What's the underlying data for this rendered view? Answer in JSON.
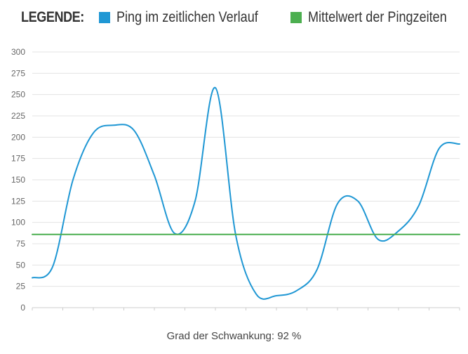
{
  "legend": {
    "title": "LEGENDE:",
    "items": [
      {
        "label": "Ping im zeitlichen Verlauf",
        "color": "#1f97d4"
      },
      {
        "label": "Mittelwert der Pingzeiten",
        "color": "#4caf50"
      }
    ]
  },
  "chart_data": {
    "type": "line",
    "title": "",
    "xlabel": "",
    "ylabel": "",
    "ylim": [
      0,
      300
    ],
    "yticks": [
      0,
      25,
      50,
      75,
      100,
      125,
      150,
      175,
      200,
      225,
      250,
      275,
      300
    ],
    "grid": true,
    "legend_position": "top",
    "series": [
      {
        "name": "Ping im zeitlichen Verlauf",
        "color": "#1f97d4",
        "values": [
          35,
          48,
          150,
          205,
          214,
          208,
          155,
          87,
          125,
          258,
          85,
          16,
          14,
          20,
          45,
          122,
          125,
          80,
          90,
          120,
          187,
          192
        ]
      },
      {
        "name": "Mittelwert der Pingzeiten",
        "color": "#4caf50",
        "values": [
          86,
          86
        ]
      }
    ]
  },
  "footer": {
    "text": "Grad der Schwankung: 92 %"
  }
}
